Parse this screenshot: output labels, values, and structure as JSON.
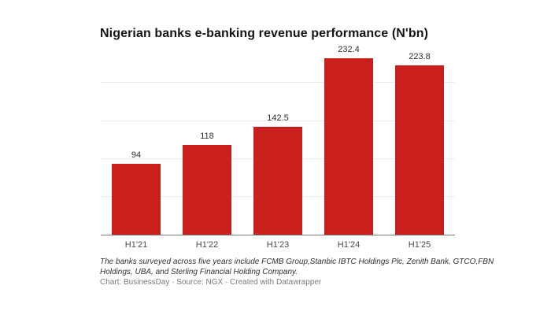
{
  "title": "Nigerian banks e-banking revenue performance (N'bn)",
  "chart_data": {
    "type": "bar",
    "categories": [
      "H1'21",
      "H1'22",
      "H1'23",
      "H1'24",
      "H1'25"
    ],
    "values": [
      94,
      118,
      142.5,
      232.4,
      223.8
    ],
    "value_labels": [
      "94",
      "118",
      "142.5",
      "232.4",
      "223.8"
    ],
    "title": "Nigerian banks e-banking revenue performance (N'bn)",
    "xlabel": "",
    "ylabel": "",
    "ylim": [
      0,
      242
    ],
    "gridlines": [
      50,
      100,
      150,
      200
    ],
    "grid": "horizontal-only",
    "legend": "none",
    "bar_color": "#ca201d"
  },
  "footer": {
    "note_lines": [
      "The banks surveyed across five years include FCMB Group,Stanbic IBTC Holdings Plc, Zenith Bank, GTCO,FBN",
      "Holdings, UBA, and Sterling Financial Holding Company."
    ],
    "credit": "Chart: BusinessDay · Source: NGX · Created with Datawrapper"
  },
  "colors": {
    "background": "#ffffff",
    "bar": "#ca201d",
    "title": "#141414",
    "value_label": "#2e2e2e",
    "axis_label": "#4a4a4a",
    "gridline": "#ebebeb",
    "baseline": "#7c7c7c",
    "note": "#303030",
    "credit": "#7a7a7a"
  }
}
